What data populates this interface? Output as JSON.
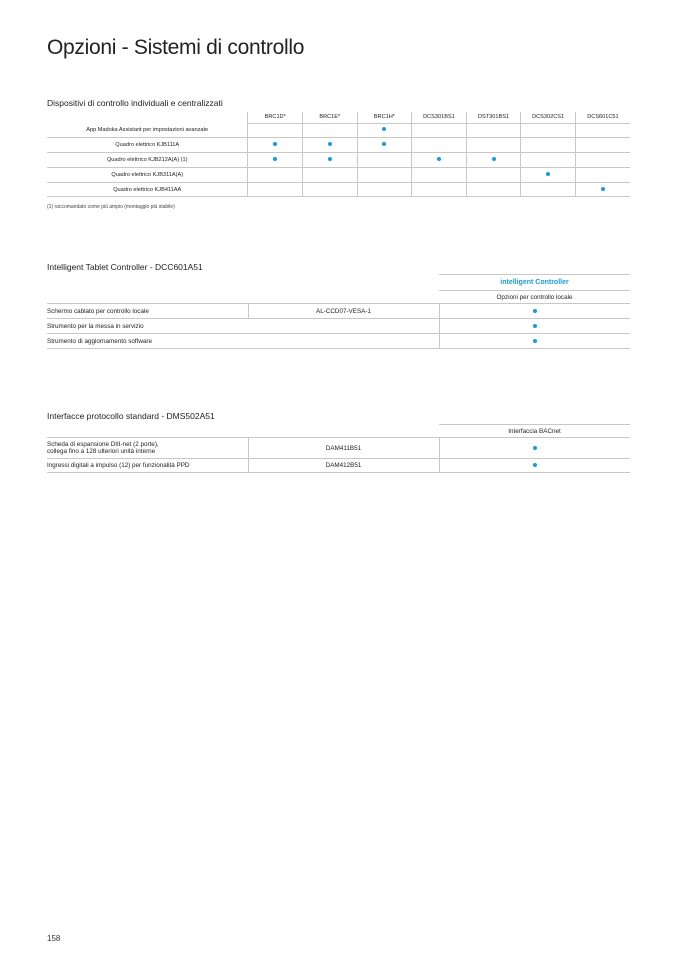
{
  "title": "Opzioni - Sistemi di controllo",
  "section1": {
    "title": "Dispositivi di controllo individuali e centralizzati",
    "columns": [
      "BRC1D*",
      "BRC1E*",
      "BRC1H*",
      "DCS301BS1",
      "DST301BS1",
      "DCS302CS1",
      "DCS601C51"
    ],
    "rows": [
      {
        "label": "App Madoka Assistant per impostazioni avanzate",
        "marks": [
          0,
          0,
          1,
          0,
          0,
          0,
          0
        ]
      },
      {
        "label": "Quadro elettrico KJB111A",
        "marks": [
          1,
          1,
          1,
          0,
          0,
          0,
          0
        ]
      },
      {
        "label": "Quadro elettrico KJB212A(A) (1)",
        "marks": [
          1,
          1,
          0,
          1,
          1,
          0,
          0
        ]
      },
      {
        "label": "Quadro elettrico KJB311A(A)",
        "marks": [
          0,
          0,
          0,
          0,
          0,
          1,
          0
        ]
      },
      {
        "label": "Quadro elettrico KJB411AA",
        "marks": [
          0,
          0,
          0,
          0,
          0,
          0,
          1
        ]
      }
    ],
    "footnote": "(1) raccomandato come più ampio (montaggio più stabile)"
  },
  "section2": {
    "title": "Intelligent Tablet Controller - DCC601A51",
    "logo": "intelligent Controller",
    "column": "Opzioni per controllo locale",
    "rows": [
      {
        "label": "Schermo cablato per controllo locale",
        "code": "AL-CCD07-VESA-1",
        "mark": true
      },
      {
        "label": "Strumento per la messa in servizio",
        "code": "",
        "mark": true
      },
      {
        "label": "Strumento di aggiornamento software",
        "code": "",
        "mark": true
      }
    ]
  },
  "section3": {
    "title": "Interfacce protocollo standard - DMS502A51",
    "column": "Interfaccia BACnet",
    "rows": [
      {
        "label_line1": "Scheda di espansione DIII-net (2 porte),",
        "label_line2": "collega fino a 128 ulteriori unità interne",
        "code": "DAM411B51",
        "mark": true
      },
      {
        "label_line1": "Ingressi digitali a impulso (12) per funzionalità PPD",
        "label_line2": "",
        "code": "DAM412B51",
        "mark": true
      }
    ]
  },
  "dot_color": "#1a9ad6",
  "page_number": "158"
}
